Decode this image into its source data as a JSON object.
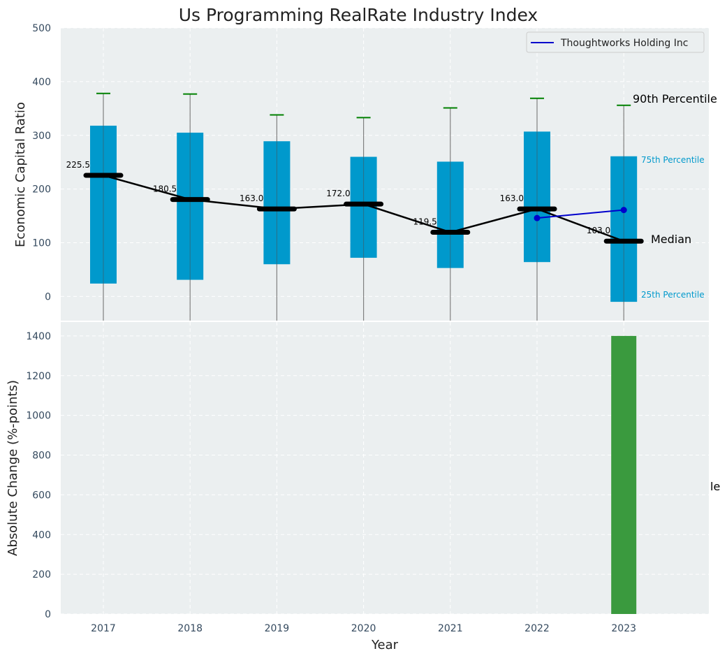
{
  "colors": {
    "panel_bg": "#ebeff0",
    "grid": "#ffffff",
    "box_fill": "#0099cc",
    "median_line": "#000000",
    "whisker": "#808080",
    "cap_90": "#008000",
    "company_line": "#0000cc",
    "change_bar": "#3a9a3e",
    "tick_text": "#34495e"
  },
  "chart_data": [
    {
      "type": "box",
      "title": "Us Programming RealRate Industry Index",
      "xlabel": "",
      "ylabel": "Economic Capital Ratio",
      "ylim": [
        -45,
        500
      ],
      "yticks": [
        0,
        100,
        200,
        300,
        400,
        500
      ],
      "grid": true,
      "categories": [
        "2017",
        "2018",
        "2019",
        "2020",
        "2021",
        "2022",
        "2023"
      ],
      "p25": [
        24,
        31,
        60,
        72,
        53,
        64,
        -10
      ],
      "p75": [
        318,
        305,
        289,
        260,
        251,
        307,
        261
      ],
      "p90": [
        378,
        377,
        338,
        333,
        351,
        369,
        356
      ],
      "whisker_low": [
        -45,
        -45,
        -45,
        -45,
        -45,
        -45,
        -45
      ],
      "median": [
        225.5,
        180.5,
        163.0,
        172.0,
        119.5,
        163.0,
        103.0
      ],
      "median_labels": [
        "225.5",
        "180.5",
        "163.0",
        "172.0",
        "119.5",
        "163.0",
        "103.0"
      ],
      "legend": {
        "placement": "top-right",
        "entries": [
          "Thoughtworks Holding Inc"
        ]
      },
      "series": [
        {
          "name": "Thoughtworks Holding Inc",
          "x": [
            "2022",
            "2023"
          ],
          "values": [
            146,
            161
          ]
        }
      ],
      "annotations": {
        "p90": "90th Percentile",
        "p75": "75th Percentile",
        "median": "Median",
        "p25": "25th Percentile"
      }
    },
    {
      "type": "bar",
      "xlabel": "Year",
      "ylabel": "Absolute Change (%-points)",
      "ylim": [
        0,
        1470
      ],
      "yticks": [
        0,
        200,
        400,
        600,
        800,
        1000,
        1200,
        1400
      ],
      "grid": true,
      "categories": [
        "2017",
        "2018",
        "2019",
        "2020",
        "2021",
        "2022",
        "2023"
      ],
      "values": [
        null,
        null,
        null,
        null,
        null,
        null,
        1400
      ],
      "clipped_text": "le"
    }
  ]
}
